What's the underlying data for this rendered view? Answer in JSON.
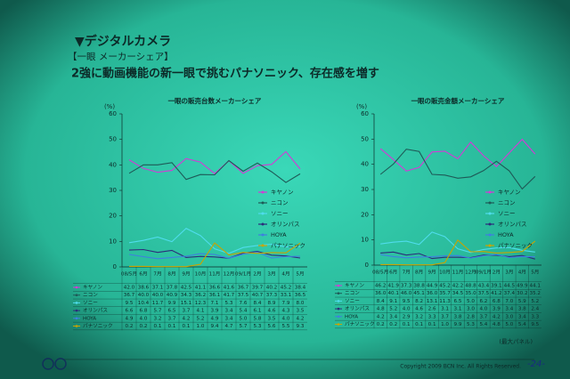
{
  "header": {
    "section": "▼デジタルカメラ",
    "subsection": "【一眼 メーカーシェア】",
    "headline": "2強に動画機能の新一眼で挑むパナソニック、存在感を増す"
  },
  "chart_data": [
    {
      "type": "line",
      "title": "一眼の販売台数メーカーシェア",
      "y_unit": "(%)",
      "categories": [
        "08/5月",
        "6月",
        "7月",
        "8月",
        "9月",
        "10月",
        "11月",
        "12月",
        "09/1月",
        "2月",
        "3月",
        "4月",
        "5月"
      ],
      "ylim": [
        0,
        60
      ],
      "yticks": [
        0,
        10,
        20,
        30,
        40,
        50,
        60
      ],
      "grid": false,
      "legend": "right",
      "series": [
        {
          "name": "キヤノン",
          "color": "#d43ad6",
          "values": [
            42.0,
            38.6,
            37.1,
            37.8,
            42.5,
            41.1,
            36.6,
            41.6,
            36.7,
            39.7,
            40.2,
            45.2,
            38.4
          ],
          "value_labels": [
            "42.0",
            "38.6",
            "37.1",
            "37.8",
            "42.5",
            "41.1",
            "36.6",
            "41.6",
            "36.7",
            "39.7",
            "40.2",
            "45.2",
            "38.4"
          ]
        },
        {
          "name": "ニコン",
          "color": "#1e5a57",
          "values": [
            36.7,
            40.0,
            40.0,
            40.9,
            34.3,
            36.2,
            36.1,
            41.7,
            37.5,
            40.7,
            37.3,
            33.1,
            36.5
          ],
          "value_labels": [
            "36.7",
            "40.0",
            "40.0",
            "40.9",
            "34.3",
            "36.2",
            "36.1",
            "41.7",
            "37.5",
            "40.7",
            "37.3",
            "33.1",
            "36.5"
          ]
        },
        {
          "name": "ソニー",
          "color": "#4fdcec",
          "values": [
            9.5,
            10.4,
            11.7,
            9.9,
            15.1,
            12.3,
            7.1,
            5.3,
            7.6,
            8.4,
            8.9,
            7.9,
            8.0
          ],
          "value_labels": [
            "9.5",
            "10.4",
            "11.7",
            "9.9",
            "15.1",
            "12.3",
            "7.1",
            "5.3",
            "7.6",
            "8.4",
            "8.9",
            "7.9",
            "8.0"
          ]
        },
        {
          "name": "オリンパス",
          "color": "#2c2c7a",
          "values": [
            6.6,
            6.8,
            5.7,
            6.5,
            3.7,
            4.1,
            3.9,
            3.4,
            5.4,
            6.1,
            4.6,
            4.3,
            3.5
          ],
          "value_labels": [
            "6.6",
            "6.8",
            "5.7",
            "6.5",
            "3.7",
            "4.1",
            "3.9",
            "3.4",
            "5.4",
            "6.1",
            "4.6",
            "4.3",
            "3.5"
          ]
        },
        {
          "name": "HOYA",
          "color": "#3f7fe0",
          "values": [
            4.9,
            4.0,
            3.2,
            3.7,
            4.2,
            5.2,
            4.9,
            3.4,
            5.0,
            5.8,
            3.5,
            4.0,
            4.2
          ],
          "value_labels": [
            "4.9",
            "4.0",
            "3.2",
            "3.7",
            "4.2",
            "5.2",
            "4.9",
            "3.4",
            "5.0",
            "5.8",
            "3.5",
            "4.0",
            "4.2"
          ]
        },
        {
          "name": "パナソニック",
          "color": "#c9a400",
          "values": [
            0.2,
            0.2,
            0.1,
            0.1,
            0.1,
            1.0,
            9.4,
            4.7,
            5.7,
            5.3,
            5.6,
            5.5,
            9.3
          ],
          "value_labels": [
            "0.2",
            "0.2",
            "0.1",
            "0.1",
            "0.1",
            "1.0",
            "9.4",
            "4.7",
            "5.7",
            "5.3",
            "5.6",
            "5.5",
            "9.3"
          ]
        }
      ]
    },
    {
      "type": "line",
      "title": "一眼の販売金額メーカーシェア",
      "y_unit": "(%)",
      "categories": [
        "08/5月",
        "6月",
        "7月",
        "8月",
        "9月",
        "10月",
        "11月",
        "12月",
        "09/1月",
        "2月",
        "3月",
        "4月",
        "5月"
      ],
      "ylim": [
        0,
        60
      ],
      "yticks": [
        0,
        10,
        20,
        30,
        40,
        50,
        60
      ],
      "grid": false,
      "legend": "right",
      "series": [
        {
          "name": "キヤノン",
          "color": "#d43ad6",
          "values": [
            46.2,
            41.9,
            37.3,
            38.8,
            44.9,
            45.2,
            42.2,
            48.8,
            43.4,
            39.1,
            44.5,
            49.9,
            44.1
          ],
          "value_labels": [
            "46.2",
            "41.9",
            "37.3",
            "38.8",
            "44.9",
            "45.2",
            "42.2",
            "48.8",
            "43.4",
            "39.1",
            "44.5",
            "49.9",
            "44.1"
          ]
        },
        {
          "name": "ニコン",
          "color": "#1e5a57",
          "values": [
            36.0,
            40.1,
            46.0,
            45.1,
            36.0,
            35.7,
            34.5,
            35.0,
            37.5,
            41.2,
            37.4,
            30.2,
            35.2
          ],
          "value_labels": [
            "36.0",
            "40.1",
            "46.0",
            "45.1",
            "36.0",
            "35.7",
            "34.5",
            "35.0",
            "37.5",
            "41.2",
            "37.4",
            "30.2",
            "35.2"
          ]
        },
        {
          "name": "ソニー",
          "color": "#4fdcec",
          "values": [
            8.4,
            9.1,
            9.5,
            8.2,
            13.1,
            11.3,
            6.5,
            5.0,
            6.2,
            6.8,
            7.0,
            5.9,
            5.2
          ],
          "value_labels": [
            "8.4",
            "9.1",
            "9.5",
            "8.2",
            "13.1",
            "11.3",
            "6.5",
            "5.0",
            "6.2",
            "6.8",
            "7.0",
            "5.9",
            "5.2"
          ]
        },
        {
          "name": "オリンパス",
          "color": "#2c2c7a",
          "values": [
            4.8,
            5.2,
            4.0,
            4.6,
            2.6,
            3.1,
            3.1,
            3.0,
            4.0,
            3.9,
            3.4,
            3.8,
            2.4
          ],
          "value_labels": [
            "4.8",
            "5.2",
            "4.0",
            "4.6",
            "2.6",
            "3.1",
            "3.1",
            "3.0",
            "4.0",
            "3.9",
            "3.4",
            "3.8",
            "2.4"
          ]
        },
        {
          "name": "HOYA",
          "color": "#3f7fe0",
          "values": [
            4.2,
            3.4,
            2.9,
            3.2,
            3.3,
            3.7,
            3.8,
            2.8,
            3.7,
            4.2,
            3.0,
            3.4,
            3.3
          ],
          "value_labels": [
            "4.2",
            "3.4",
            "2.9",
            "3.2",
            "3.3",
            "3.7",
            "3.8",
            "2.8",
            "3.7",
            "4.2",
            "3.0",
            "3.4",
            "3.3"
          ]
        },
        {
          "name": "パナソニック",
          "color": "#c9a400",
          "values": [
            0.2,
            0.2,
            0.1,
            0.1,
            0.1,
            1.0,
            9.9,
            5.3,
            5.4,
            4.8,
            5.0,
            5.4,
            9.5
          ],
          "value_labels": [
            "0.2",
            "0.2",
            "0.1",
            "0.1",
            "0.1",
            "1.0",
            "9.9",
            "5.3",
            "5.4",
            "4.8",
            "5.0",
            "5.4",
            "9.5"
          ]
        }
      ]
    }
  ],
  "footer": {
    "source": "(最大パネル)",
    "copyright": "Copyright 2009 BCN Inc. All Rights Reserved.",
    "page": "-24-"
  }
}
